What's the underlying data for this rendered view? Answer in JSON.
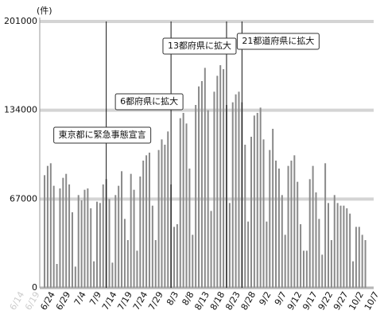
{
  "chart_data": {
    "type": "bar",
    "y_label": "(件)",
    "categories": [
      "6/14",
      null,
      null,
      null,
      null,
      "6/19",
      null,
      null,
      null,
      null,
      "6/24",
      null,
      null,
      null,
      null,
      "6/29",
      null,
      null,
      null,
      null,
      "7/4",
      null,
      null,
      null,
      null,
      "7/9",
      null,
      null,
      null,
      null,
      "7/14",
      null,
      null,
      null,
      null,
      "7/19",
      null,
      null,
      null,
      null,
      "7/24",
      null,
      null,
      null,
      null,
      "7/29",
      null,
      null,
      null,
      null,
      "8/3",
      null,
      null,
      null,
      null,
      "8/8",
      null,
      null,
      null,
      null,
      "8/13",
      null,
      null,
      null,
      null,
      "8/18",
      null,
      null,
      null,
      null,
      "8/23",
      null,
      null,
      null,
      null,
      "8/28",
      null,
      null,
      null,
      null,
      "9/2",
      null,
      null,
      null,
      null,
      "9/7",
      null,
      null,
      null,
      null,
      "9/12",
      null,
      null,
      null,
      null,
      "9/17",
      null,
      null,
      null,
      null,
      "9/22",
      null,
      null,
      null,
      null,
      "9/27",
      null,
      null,
      null,
      null,
      "10/2",
      null,
      null,
      null,
      null,
      "10/7"
    ],
    "values": [
      null,
      null,
      null,
      null,
      null,
      null,
      null,
      null,
      85000,
      92000,
      94000,
      77000,
      18000,
      75000,
      83000,
      86000,
      78000,
      57000,
      16000,
      70000,
      66000,
      74000,
      75000,
      60000,
      20000,
      65000,
      64000,
      78000,
      82000,
      67000,
      19000,
      70000,
      77000,
      88000,
      52000,
      36000,
      86000,
      74000,
      28000,
      84000,
      96000,
      100000,
      102000,
      62000,
      36000,
      104000,
      112000,
      108000,
      118000,
      78000,
      46000,
      48000,
      128000,
      132000,
      124000,
      90000,
      40000,
      138000,
      152000,
      156000,
      166000,
      134000,
      58000,
      148000,
      160000,
      168000,
      165000,
      138000,
      64000,
      140000,
      146000,
      148000,
      140000,
      108000,
      50000,
      114000,
      130000,
      132000,
      136000,
      112000,
      50000,
      104000,
      120000,
      96000,
      90000,
      70000,
      40000,
      92000,
      96000,
      100000,
      80000,
      48000,
      28000,
      28000,
      82000,
      92000,
      72000,
      52000,
      25000,
      94000,
      64000,
      36000,
      70000,
      64000,
      62000,
      62000,
      60000,
      56000,
      20000,
      46000,
      46000,
      40000,
      36000,
      null,
      null,
      null
    ],
    "color": "#8a8a8a",
    "ylim": [
      0,
      201000
    ],
    "yticks": [
      0,
      67000,
      134000,
      201000
    ],
    "grid": true,
    "annotations": [
      {
        "category": "7/12",
        "text": "東京都に緊急事態宣言"
      },
      {
        "category": "8/2",
        "text": "6都府県に拡大"
      },
      {
        "category": "8/20",
        "text": "13都府県に拡大"
      },
      {
        "category": "8/25",
        "text": "21都道府県に拡大"
      }
    ]
  }
}
